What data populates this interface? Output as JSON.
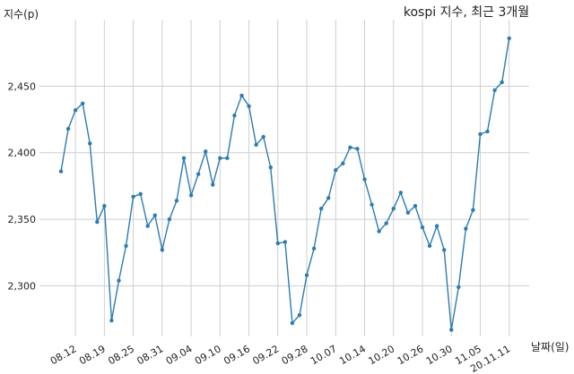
{
  "chart_data": {
    "type": "line",
    "title": "kospi 지수, 최근 3개월",
    "ylabel": "지수(p)",
    "xlabel": "날짜(일)",
    "ylim": [
      2262,
      2500
    ],
    "yticks": [
      2300,
      2350,
      2400,
      2450
    ],
    "ytick_labels": [
      "2,300",
      "2,350",
      "2,400",
      "2,450"
    ],
    "xtick_labels": [
      "08.12",
      "08.19",
      "08.25",
      "08.31",
      "09.04",
      "09.10",
      "09.16",
      "09.22",
      "09.28",
      "10.07",
      "10.14",
      "10.20",
      "10.26",
      "10.30",
      "11.05",
      "20.11.11"
    ],
    "xtick_index": [
      2,
      6,
      10,
      14,
      18,
      22,
      26,
      30,
      34,
      38,
      42,
      46,
      50,
      54,
      58,
      62
    ],
    "grid": true,
    "series": [
      {
        "color": "#2e7bb0",
        "values": [
          2386,
          2418,
          2432,
          2437,
          2407,
          2348,
          2360,
          2274,
          2304,
          2330,
          2367,
          2369,
          2345,
          2353,
          2327,
          2350,
          2364,
          2396,
          2368,
          2384,
          2401,
          2376,
          2396,
          2396,
          2428,
          2443,
          2435,
          2406,
          2412,
          2389,
          2332,
          2333,
          2272,
          2278,
          2308,
          2328,
          2358,
          2366,
          2387,
          2392,
          2404,
          2403,
          2380,
          2361,
          2341,
          2347,
          2358,
          2370,
          2355,
          2360,
          2344,
          2330,
          2345,
          2327,
          2267,
          2299,
          2343,
          2357,
          2414,
          2416,
          2447,
          2453,
          2486
        ]
      }
    ]
  }
}
